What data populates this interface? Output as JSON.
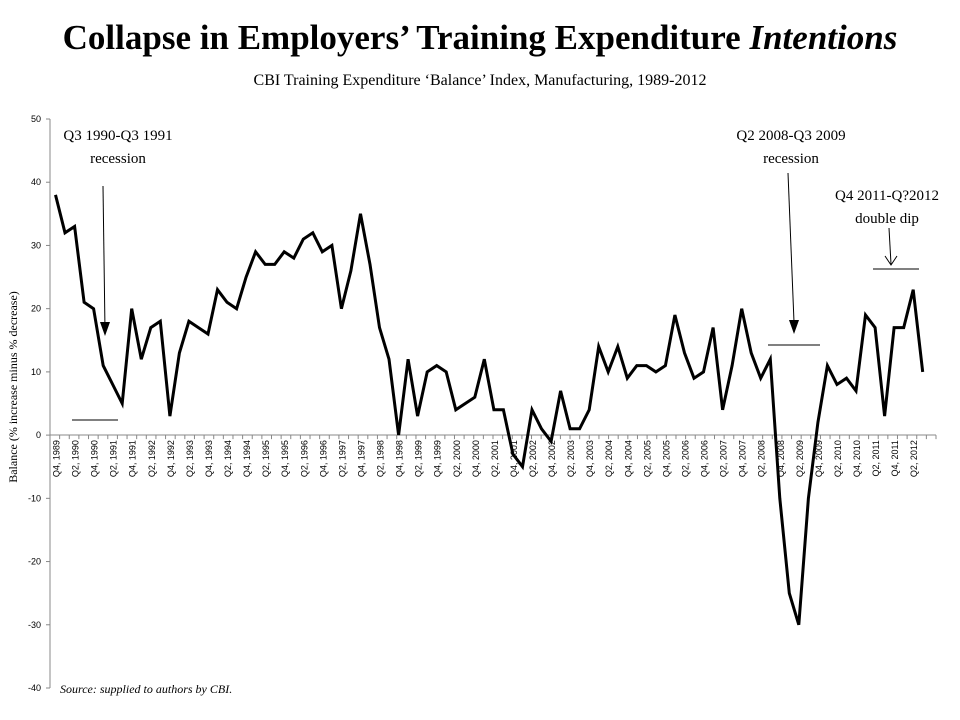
{
  "title_main": "Collapse in Employers’ Training Expenditure ",
  "title_italic": "Intentions",
  "chart_data": {
    "type": "line",
    "title": "Collapse in Employers’ Training Expenditure Intentions",
    "subtitle": "CBI Training Expenditure ‘Balance’ Index, Manufacturing, 1989-2012",
    "ylabel": "Balance (% increase minus % decrease)",
    "xlabel": "",
    "ylim": [
      -40,
      50
    ],
    "yticks": [
      -40,
      -30,
      -20,
      -10,
      0,
      10,
      20,
      30,
      40,
      50
    ],
    "grid": false,
    "legend": "none",
    "line_color": "#000000",
    "tick_labels": [
      "Q4, 1989",
      "Q2, 1990",
      "Q4, 1990",
      "Q2, 1991",
      "Q4, 1991",
      "Q2, 1992",
      "Q4, 1992",
      "Q2, 1993",
      "Q4, 1993",
      "Q2, 1994",
      "Q4, 1994",
      "Q2, 1995",
      "Q4, 1995",
      "Q2, 1996",
      "Q4, 1996",
      "Q2, 1997",
      "Q4, 1997",
      "Q2, 1998",
      "Q4, 1998",
      "Q2, 1999",
      "Q4, 1999",
      "Q2, 2000",
      "Q4, 2000",
      "Q2, 2001",
      "Q4, 2001",
      "Q2, 2002",
      "Q4, 2002",
      "Q2, 2003",
      "Q4, 2003",
      "Q2, 2004",
      "Q4, 2004",
      "Q2, 2005",
      "Q4, 2005",
      "Q2, 2006",
      "Q4, 2006",
      "Q2, 2007",
      "Q4, 2007",
      "Q2, 2008",
      "Q4, 2008",
      "Q2, 2009",
      "Q4, 2009",
      "Q2, 2010",
      "Q4, 2010",
      "Q2, 2011",
      "Q4, 2011",
      "Q2, 2012"
    ],
    "values": [
      38,
      32,
      33,
      21,
      20,
      11,
      8,
      5,
      20,
      12,
      17,
      18,
      3,
      13,
      18,
      17,
      16,
      23,
      21,
      20,
      25,
      29,
      27,
      27,
      29,
      28,
      31,
      32,
      29,
      30,
      20,
      26,
      35,
      27,
      17,
      12,
      0,
      12,
      3,
      10,
      11,
      10,
      4,
      5,
      6,
      12,
      4,
      4,
      -3,
      -5,
      4,
      1,
      -1,
      7,
      1,
      1,
      4,
      14,
      10,
      14,
      9,
      11,
      11,
      10,
      11,
      19,
      13,
      9,
      10,
      17,
      4,
      11,
      20,
      13,
      9,
      12,
      -10,
      -25,
      -30,
      -10,
      2,
      11,
      8,
      9,
      7,
      19,
      17,
      3,
      17,
      17,
      23,
      10
    ]
  },
  "annotations": [
    {
      "line1": "Q3 1990-Q3 1991",
      "line2": "recession"
    },
    {
      "line1": "Q2 2008-Q3 2009",
      "line2": "recession"
    },
    {
      "line1": "Q4 2011-Q?2012",
      "line2": "double dip"
    }
  ],
  "source": "Source: supplied to authors by CBI."
}
